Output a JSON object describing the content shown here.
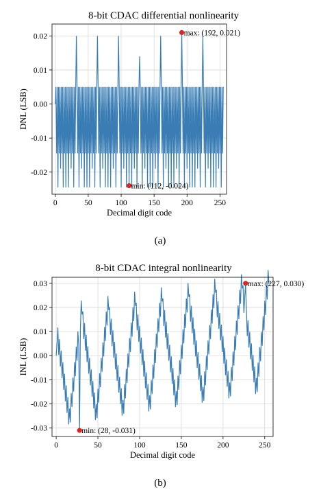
{
  "chart_data": [
    {
      "type": "line",
      "title": "8-bit CDAC differential nonlinearity",
      "xlabel": "Decimal digit code",
      "ylabel": "DNL (LSB)",
      "caption": "(a)",
      "xlim": [
        -5,
        260
      ],
      "ylim": [
        -0.0265,
        0.0235
      ],
      "xticks": [
        0,
        50,
        100,
        150,
        200,
        250
      ],
      "yticks": [
        0.02,
        0.01,
        0.0,
        -0.01,
        -0.02
      ],
      "xtick_labels": [
        "0",
        "50",
        "100",
        "150",
        "200",
        "250"
      ],
      "ytick_labels": [
        "0.02",
        "0.01",
        "0.00",
        "-0.01",
        "-0.02"
      ],
      "grid": true,
      "line_color": "#3a7db4",
      "marker_color": "#d62728",
      "pattern": "dnl",
      "x_range": [
        0,
        255
      ],
      "peaks": [
        [
          32,
          0.02
        ],
        [
          64,
          0.02
        ],
        [
          96,
          0.02
        ],
        [
          128,
          0.014
        ],
        [
          160,
          0.02
        ],
        [
          192,
          0.021
        ],
        [
          224,
          0.02
        ]
      ],
      "max": {
        "x": 192,
        "y": 0.021,
        "label": "max: (192, 0.021)"
      },
      "min": {
        "x": 112,
        "y": -0.024,
        "label": "min: (112, -0.024)"
      }
    },
    {
      "type": "line",
      "title": "8-bit CDAC integral nonlinearity",
      "xlabel": "Decimal digit code",
      "ylabel": "INL (LSB)",
      "caption": "(b)",
      "xlim": [
        -5,
        260
      ],
      "ylim": [
        -0.0335,
        0.0325
      ],
      "xticks": [
        0,
        50,
        100,
        150,
        200,
        250
      ],
      "yticks": [
        0.03,
        0.02,
        0.01,
        0.0,
        -0.01,
        -0.02,
        -0.03
      ],
      "xtick_labels": [
        "0",
        "50",
        "100",
        "150",
        "200",
        "250"
      ],
      "ytick_labels": [
        "0.03",
        "0.02",
        "0.01",
        "0.00",
        "-0.01",
        "-0.02",
        "-0.03"
      ],
      "grid": true,
      "line_color": "#3a7db4",
      "marker_color": "#d62728",
      "pattern": "inl",
      "x_range": [
        0,
        255
      ],
      "max": {
        "x": 227,
        "y": 0.03,
        "label": "max: (227, 0.030)"
      },
      "min": {
        "x": 28,
        "y": -0.031,
        "label": "min: (28, -0.031)"
      }
    }
  ]
}
